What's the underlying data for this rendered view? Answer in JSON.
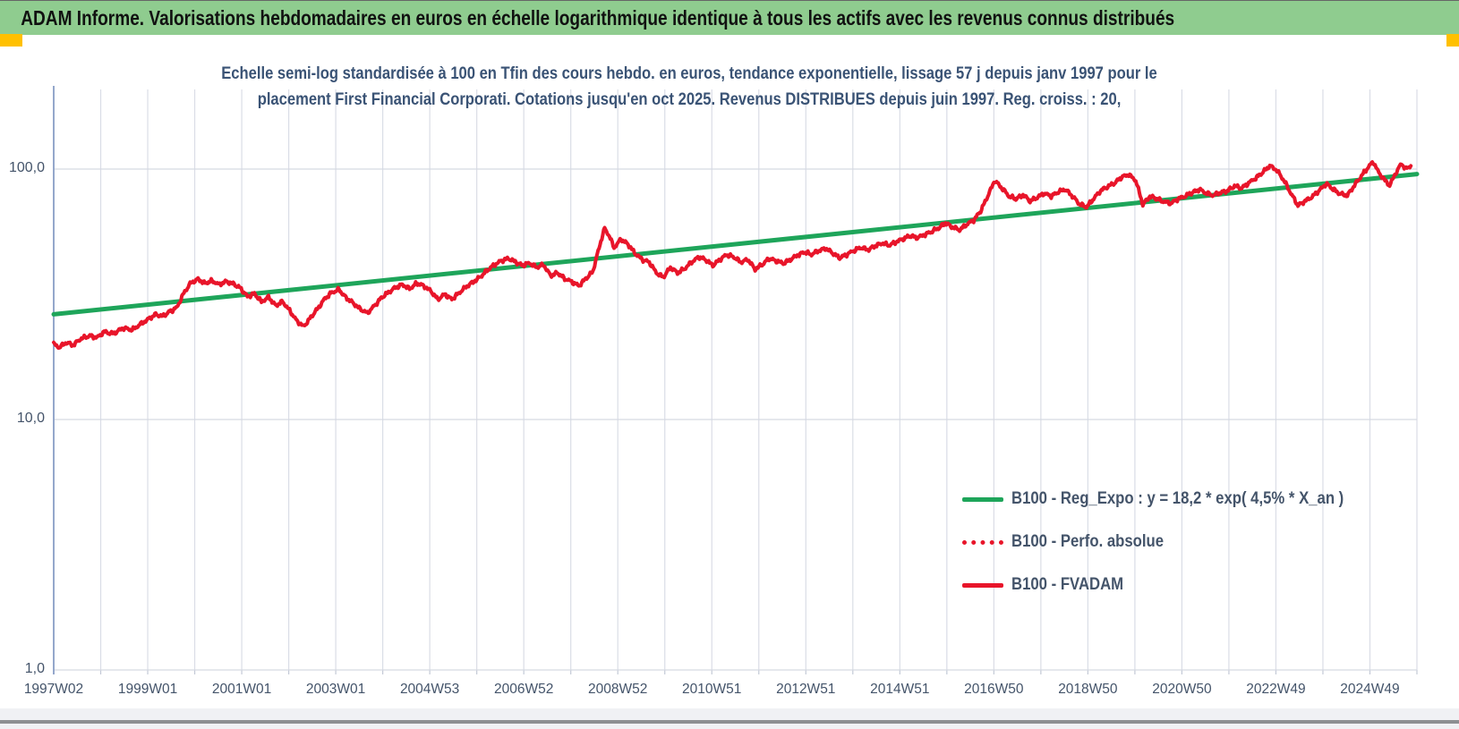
{
  "banner": {
    "title": "ADAM Informe. Valorisations hebdomadaires en euros en échelle logarithmique identique à tous les actifs avec les revenus connus distribués",
    "bg_color": "#8fcc8f",
    "accent_color": "#ffc000"
  },
  "chart_data": {
    "type": "line",
    "title_lines": [
      "Echelle semi-log standardisée à 100 en Tfin des cours hebdo. en euros, tendance exponentielle, lissage 57 j depuis janv 1997 pour le",
      "placement First Financial Corporati. Cotations jusqu'en oct 2025. Revenus DISTRIBUES depuis juin 1997. Reg. croiss. : 20,"
    ],
    "y_scale": "log10",
    "ylim": [
      1,
      200
    ],
    "yticks": [
      {
        "value": 1,
        "label": "1,0"
      },
      {
        "value": 10,
        "label": "10,0"
      },
      {
        "value": 100,
        "label": "100,0"
      }
    ],
    "xlim": [
      1997.03,
      2026.03
    ],
    "xticks": [
      {
        "label": "1997W02"
      },
      {
        "label": "1999W01"
      },
      {
        "label": "2001W01"
      },
      {
        "label": "2003W01"
      },
      {
        "label": "2004W53"
      },
      {
        "label": "2006W52"
      },
      {
        "label": "2008W52"
      },
      {
        "label": "2010W51"
      },
      {
        "label": "2012W51"
      },
      {
        "label": "2014W51"
      },
      {
        "label": "2016W50"
      },
      {
        "label": "2018W50"
      },
      {
        "label": "2020W50"
      },
      {
        "label": "2022W49"
      },
      {
        "label": "2024W49"
      }
    ],
    "grid": true,
    "legend_position": "inside-lower-right",
    "legend": [
      {
        "label": "B100 - Reg_Expo : y = 18,2 * exp( 4,5% *  X_an )",
        "color": "#1ea55a",
        "style": "solid"
      },
      {
        "label": "B100 - Perfo. absolue",
        "color": "#e8152a",
        "style": "dotted"
      },
      {
        "label": "B100 - FVADAM",
        "color": "#e8152a",
        "style": "solid"
      }
    ],
    "series": [
      {
        "name": "B100 - Reg_Expo",
        "color": "#1ea55a",
        "style": "solid",
        "formula": "y = 18,2 * exp( 4,5% * X_an )",
        "points": [
          [
            1997.03,
            26.3
          ],
          [
            2026.03,
            95.5
          ]
        ]
      },
      {
        "name": "B100 - Perfo. absolue",
        "color": "#e8152a",
        "style": "dotted",
        "coincident_with": "B100 - FVADAM"
      },
      {
        "name": "B100 - FVADAM",
        "color": "#e8152a",
        "style": "solid",
        "points": [
          [
            1997.03,
            20.0
          ],
          [
            1997.15,
            19.4
          ],
          [
            1997.3,
            20.3
          ],
          [
            1997.45,
            19.8
          ],
          [
            1997.6,
            21.0
          ],
          [
            1997.8,
            21.6
          ],
          [
            1997.95,
            21.2
          ],
          [
            1998.1,
            22.4
          ],
          [
            1998.3,
            22.0
          ],
          [
            1998.5,
            23.2
          ],
          [
            1998.7,
            22.8
          ],
          [
            1998.9,
            24.2
          ],
          [
            1999.05,
            25.2
          ],
          [
            1999.2,
            26.3
          ],
          [
            1999.35,
            25.8
          ],
          [
            1999.5,
            27.0
          ],
          [
            1999.65,
            28.0
          ],
          [
            1999.8,
            32.0
          ],
          [
            1999.95,
            35.2
          ],
          [
            2000.1,
            36.3
          ],
          [
            2000.25,
            35.0
          ],
          [
            2000.4,
            35.8
          ],
          [
            2000.55,
            34.6
          ],
          [
            2000.7,
            35.6
          ],
          [
            2000.85,
            34.8
          ],
          [
            2001.0,
            33.5
          ],
          [
            2001.15,
            31.0
          ],
          [
            2001.3,
            31.8
          ],
          [
            2001.45,
            29.5
          ],
          [
            2001.6,
            30.8
          ],
          [
            2001.75,
            28.5
          ],
          [
            2001.9,
            29.6
          ],
          [
            2002.05,
            27.2
          ],
          [
            2002.2,
            24.8
          ],
          [
            2002.35,
            23.5
          ],
          [
            2002.5,
            25.6
          ],
          [
            2002.65,
            27.8
          ],
          [
            2002.8,
            30.4
          ],
          [
            2002.95,
            32.2
          ],
          [
            2003.1,
            33.0
          ],
          [
            2003.25,
            30.6
          ],
          [
            2003.4,
            29.2
          ],
          [
            2003.55,
            27.6
          ],
          [
            2003.7,
            26.6
          ],
          [
            2003.85,
            28.4
          ],
          [
            2004.0,
            30.6
          ],
          [
            2004.15,
            32.2
          ],
          [
            2004.3,
            33.6
          ],
          [
            2004.45,
            34.6
          ],
          [
            2004.6,
            33.2
          ],
          [
            2004.75,
            35.0
          ],
          [
            2004.9,
            34.2
          ],
          [
            2005.05,
            32.6
          ],
          [
            2005.2,
            30.2
          ],
          [
            2005.35,
            31.6
          ],
          [
            2005.5,
            30.2
          ],
          [
            2005.65,
            32.0
          ],
          [
            2005.8,
            33.8
          ],
          [
            2005.95,
            35.4
          ],
          [
            2006.1,
            37.0
          ],
          [
            2006.25,
            39.4
          ],
          [
            2006.4,
            41.4
          ],
          [
            2006.55,
            43.0
          ],
          [
            2006.7,
            44.0
          ],
          [
            2006.85,
            42.6
          ],
          [
            2007.0,
            41.2
          ],
          [
            2007.15,
            42.2
          ],
          [
            2007.3,
            40.5
          ],
          [
            2007.45,
            41.5
          ],
          [
            2007.6,
            37.5
          ],
          [
            2007.75,
            38.5
          ],
          [
            2007.9,
            36.5
          ],
          [
            2008.05,
            35.5
          ],
          [
            2008.2,
            34.2
          ],
          [
            2008.35,
            36.5
          ],
          [
            2008.5,
            39.0
          ],
          [
            2008.65,
            50.0
          ],
          [
            2008.75,
            58.0
          ],
          [
            2008.85,
            54.0
          ],
          [
            2008.95,
            48.5
          ],
          [
            2009.1,
            52.5
          ],
          [
            2009.25,
            50.0
          ],
          [
            2009.4,
            46.0
          ],
          [
            2009.55,
            43.5
          ],
          [
            2009.7,
            42.5
          ],
          [
            2009.85,
            38.5
          ],
          [
            2010.0,
            37.0
          ],
          [
            2010.15,
            40.5
          ],
          [
            2010.3,
            38.5
          ],
          [
            2010.45,
            40.0
          ],
          [
            2010.6,
            42.5
          ],
          [
            2010.75,
            44.5
          ],
          [
            2010.9,
            43.5
          ],
          [
            2011.05,
            41.2
          ],
          [
            2011.2,
            43.5
          ],
          [
            2011.35,
            45.5
          ],
          [
            2011.5,
            44.5
          ],
          [
            2011.65,
            42.5
          ],
          [
            2011.8,
            43.5
          ],
          [
            2011.95,
            39.8
          ],
          [
            2012.1,
            41.5
          ],
          [
            2012.25,
            44.0
          ],
          [
            2012.4,
            43.0
          ],
          [
            2012.55,
            42.0
          ],
          [
            2012.7,
            43.5
          ],
          [
            2012.85,
            45.2
          ],
          [
            2013.0,
            46.6
          ],
          [
            2013.15,
            45.6
          ],
          [
            2013.3,
            47.2
          ],
          [
            2013.45,
            48.2
          ],
          [
            2013.6,
            46.2
          ],
          [
            2013.75,
            44.2
          ],
          [
            2013.9,
            45.6
          ],
          [
            2014.05,
            47.2
          ],
          [
            2014.2,
            48.6
          ],
          [
            2014.35,
            47.6
          ],
          [
            2014.5,
            49.2
          ],
          [
            2014.65,
            50.6
          ],
          [
            2014.8,
            49.6
          ],
          [
            2014.95,
            51.2
          ],
          [
            2015.1,
            52.6
          ],
          [
            2015.25,
            54.2
          ],
          [
            2015.4,
            53.2
          ],
          [
            2015.55,
            54.6
          ],
          [
            2015.7,
            56.2
          ],
          [
            2015.85,
            58.0
          ],
          [
            2016.0,
            61.0
          ],
          [
            2016.15,
            58.5
          ],
          [
            2016.3,
            57.2
          ],
          [
            2016.45,
            60.0
          ],
          [
            2016.6,
            62.5
          ],
          [
            2016.75,
            68.0
          ],
          [
            2016.9,
            78.0
          ],
          [
            2017.05,
            90.0
          ],
          [
            2017.2,
            84.0
          ],
          [
            2017.35,
            78.0
          ],
          [
            2017.5,
            76.0
          ],
          [
            2017.65,
            79.0
          ],
          [
            2017.8,
            74.5
          ],
          [
            2017.95,
            77.0
          ],
          [
            2018.1,
            80.0
          ],
          [
            2018.25,
            78.0
          ],
          [
            2018.4,
            81.0
          ],
          [
            2018.55,
            83.0
          ],
          [
            2018.7,
            78.0
          ],
          [
            2018.85,
            72.5
          ],
          [
            2019.0,
            70.5
          ],
          [
            2019.15,
            76.0
          ],
          [
            2019.3,
            82.0
          ],
          [
            2019.45,
            85.0
          ],
          [
            2019.6,
            88.0
          ],
          [
            2019.75,
            93.0
          ],
          [
            2019.9,
            95.0
          ],
          [
            2020.05,
            90.0
          ],
          [
            2020.2,
            72.0
          ],
          [
            2020.35,
            78.0
          ],
          [
            2020.5,
            76.0
          ],
          [
            2020.65,
            74.0
          ],
          [
            2020.8,
            73.0
          ],
          [
            2020.95,
            76.0
          ],
          [
            2021.1,
            78.0
          ],
          [
            2021.25,
            80.5
          ],
          [
            2021.4,
            83.0
          ],
          [
            2021.55,
            80.0
          ],
          [
            2021.7,
            78.5
          ],
          [
            2021.85,
            80.5
          ],
          [
            2022.0,
            82.0
          ],
          [
            2022.15,
            85.5
          ],
          [
            2022.3,
            84.0
          ],
          [
            2022.45,
            88.0
          ],
          [
            2022.6,
            92.0
          ],
          [
            2022.75,
            97.0
          ],
          [
            2022.9,
            103.0
          ],
          [
            2023.05,
            99.0
          ],
          [
            2023.2,
            90.0
          ],
          [
            2023.35,
            80.0
          ],
          [
            2023.5,
            71.5
          ],
          [
            2023.65,
            74.5
          ],
          [
            2023.8,
            77.5
          ],
          [
            2023.95,
            82.0
          ],
          [
            2024.1,
            87.5
          ],
          [
            2024.25,
            83.0
          ],
          [
            2024.4,
            79.5
          ],
          [
            2024.55,
            78.5
          ],
          [
            2024.7,
            86.0
          ],
          [
            2024.85,
            94.0
          ],
          [
            2025.0,
            102.0
          ],
          [
            2025.1,
            107.0
          ],
          [
            2025.2,
            98.0
          ],
          [
            2025.35,
            90.0
          ],
          [
            2025.45,
            86.0
          ],
          [
            2025.6,
            98.0
          ],
          [
            2025.7,
            105.0
          ],
          [
            2025.8,
            100.0
          ],
          [
            2025.9,
            103.0
          ]
        ]
      }
    ],
    "colors": {
      "axis_text": "#44546a",
      "gridline": "#dadde6",
      "y_axis_line": "#94a7cb",
      "reg_expo_green": "#1ea55a",
      "fvadam_red": "#e8152a"
    }
  }
}
